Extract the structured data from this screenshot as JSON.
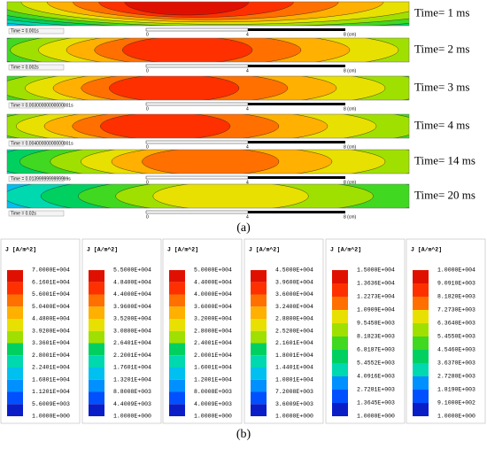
{
  "panel_a": {
    "strips": [
      {
        "time_label": "Time = 0.001s",
        "annotation": "Time= 1 ms"
      },
      {
        "time_label": "Time = 0.002s",
        "annotation": "Time= 2 ms"
      },
      {
        "time_label": "Time = 0.00300000000000001s",
        "annotation": "Time= 3 ms"
      },
      {
        "time_label": "Time = 0.00400000000000001s",
        "annotation": "Time= 4 ms"
      },
      {
        "time_label": "Time = 0.0139999999999999s",
        "annotation": "Time= 14 ms"
      },
      {
        "time_label": "Time = 0.02s",
        "annotation": "Time= 20 ms"
      }
    ],
    "scale_labels": [
      "0",
      "4",
      "8 (cm)"
    ],
    "caption": "(a)"
  },
  "panel_b": {
    "legends": [
      {
        "title": "J [A/m^2]",
        "labels": [
          "7.0000E+004",
          "6.1601E+004",
          "5.6001E+004",
          "5.0400E+004",
          "4.4800E+004",
          "3.9200E+004",
          "3.3601E+004",
          "2.8001E+004",
          "2.2401E+004",
          "1.6801E+004",
          "1.1201E+004",
          "5.6009E+003",
          "1.0000E+000"
        ]
      },
      {
        "title": "J [A/m^2]",
        "labels": [
          "5.5000E+004",
          "4.8400E+004",
          "4.4000E+004",
          "3.9600E+004",
          "3.5200E+004",
          "3.0800E+004",
          "2.6401E+004",
          "2.2001E+004",
          "1.7601E+004",
          "1.3201E+004",
          "8.8008E+003",
          "4.4009E+003",
          "1.0000E+000"
        ]
      },
      {
        "title": "J [A/m^2]",
        "labels": [
          "5.0000E+004",
          "4.4000E+004",
          "4.0000E+004",
          "3.6000E+004",
          "3.2000E+004",
          "2.8000E+004",
          "2.4001E+004",
          "2.0001E+004",
          "1.6001E+004",
          "1.2001E+004",
          "8.0008E+003",
          "4.0009E+003",
          "1.0000E+000"
        ]
      },
      {
        "title": "J [A/m^2]",
        "labels": [
          "4.5000E+004",
          "3.9600E+004",
          "3.6000E+004",
          "3.2400E+004",
          "2.8800E+004",
          "2.5200E+004",
          "2.1601E+004",
          "1.8001E+004",
          "1.4401E+004",
          "1.0801E+004",
          "7.2008E+003",
          "3.6009E+003",
          "1.0000E+000"
        ]
      },
      {
        "title": "J [A/m^2]",
        "labels": [
          "1.5000E+004",
          "1.3636E+004",
          "1.2273E+004",
          "1.0909E+004",
          "9.5458E+003",
          "8.1823E+003",
          "6.8187E+003",
          "5.4552E+003",
          "4.0916E+003",
          "2.7281E+003",
          "1.3645E+003",
          "1.0000E+000"
        ]
      },
      {
        "title": "J [A/m^2]",
        "labels": [
          "1.0000E+004",
          "9.0910E+003",
          "8.1820E+003",
          "7.2730E+003",
          "6.3640E+003",
          "5.4550E+003",
          "4.5460E+003",
          "3.6370E+003",
          "2.7280E+003",
          "1.8190E+003",
          "9.1000E+002",
          "1.0000E+000"
        ]
      }
    ],
    "caption": "(b)"
  }
}
